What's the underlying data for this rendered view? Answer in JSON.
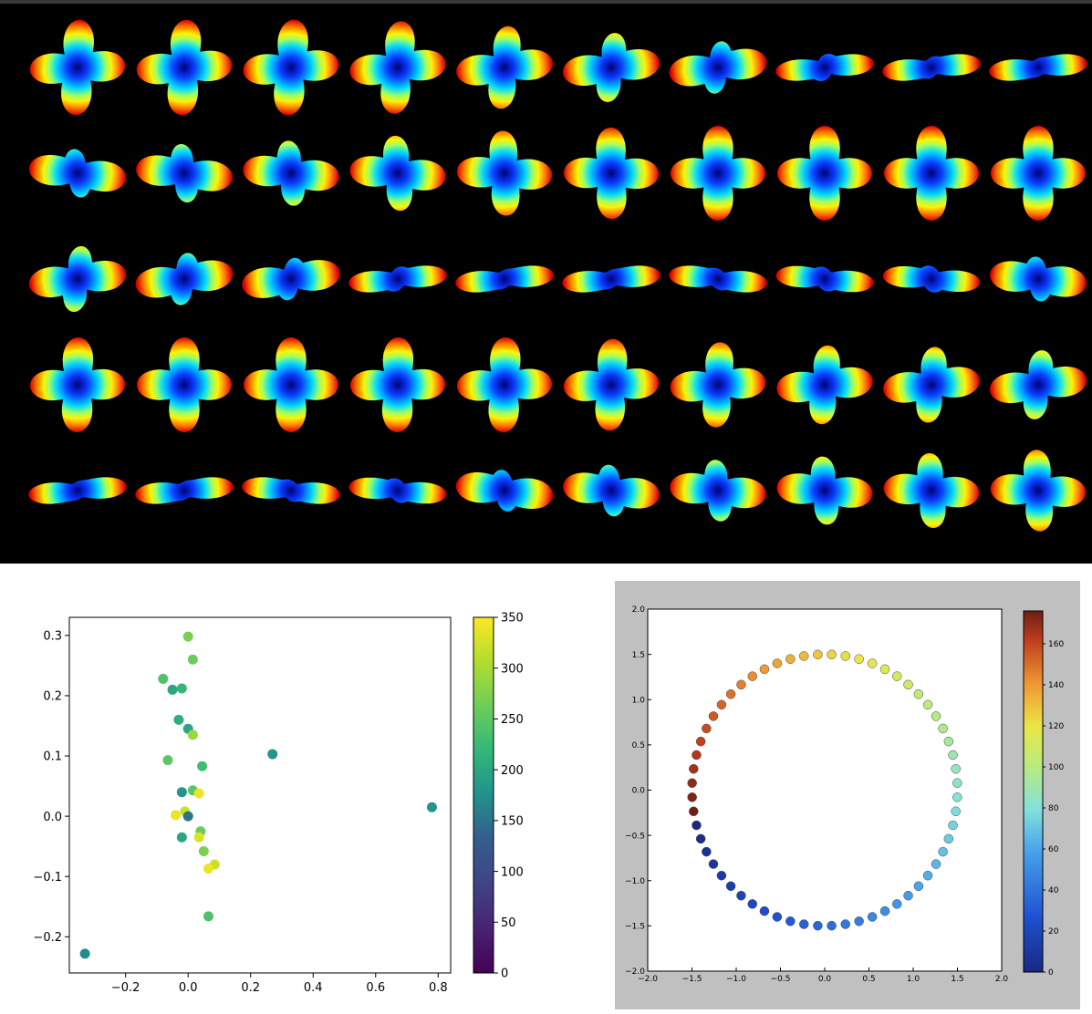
{
  "glyph_panel": {
    "rows": 5,
    "cols": 10,
    "background": "#000000",
    "colormap": "jet",
    "shape_type": "fourier-glyph",
    "cell_params": [
      [
        [
          1.0,
          0.15
        ],
        [
          1.0,
          0.2
        ],
        [
          1.0,
          0.25
        ],
        [
          0.95,
          0.3
        ],
        [
          0.8,
          0.35
        ],
        [
          0.6,
          0.4
        ],
        [
          0.35,
          0.45
        ],
        [
          0.15,
          0.5
        ],
        [
          0.05,
          0.5
        ],
        [
          0.0,
          0.5
        ]
      ],
      [
        [
          0.3,
          -0.4
        ],
        [
          0.45,
          -0.35
        ],
        [
          0.55,
          -0.3
        ],
        [
          0.7,
          -0.25
        ],
        [
          0.85,
          -0.15
        ],
        [
          0.95,
          -0.05
        ],
        [
          1.0,
          0.0
        ],
        [
          1.0,
          0.0
        ],
        [
          1.0,
          0.0
        ],
        [
          1.0,
          0.0
        ]
      ],
      [
        [
          0.55,
          0.4
        ],
        [
          0.35,
          0.45
        ],
        [
          0.2,
          0.5
        ],
        [
          0.1,
          0.5
        ],
        [
          0.0,
          0.5
        ],
        [
          0.0,
          0.5
        ],
        [
          0.05,
          -0.5
        ],
        [
          0.1,
          -0.45
        ],
        [
          0.15,
          -0.4
        ],
        [
          0.25,
          -0.35
        ]
      ],
      [
        [
          1.0,
          0.05
        ],
        [
          1.0,
          0.0
        ],
        [
          1.0,
          0.0
        ],
        [
          1.0,
          0.05
        ],
        [
          1.0,
          0.1
        ],
        [
          0.95,
          0.15
        ],
        [
          0.85,
          0.2
        ],
        [
          0.75,
          0.3
        ],
        [
          0.7,
          0.35
        ],
        [
          0.6,
          0.4
        ]
      ],
      [
        [
          0.0,
          0.5
        ],
        [
          0.0,
          0.5
        ],
        [
          0.05,
          -0.5
        ],
        [
          0.1,
          -0.45
        ],
        [
          0.2,
          -0.4
        ],
        [
          0.35,
          -0.35
        ],
        [
          0.5,
          -0.3
        ],
        [
          0.6,
          -0.25
        ],
        [
          0.7,
          -0.2
        ],
        [
          0.8,
          -0.15
        ]
      ]
    ]
  },
  "chart_data": [
    {
      "type": "scatter",
      "xlim": [
        -0.38,
        0.84
      ],
      "ylim": [
        -0.26,
        0.33
      ],
      "xticks": [
        -0.2,
        0.0,
        0.2,
        0.4,
        0.6,
        0.8
      ],
      "xtick_labels": [
        "−0.2",
        "0.0",
        "0.2",
        "0.4",
        "0.6",
        "0.8"
      ],
      "yticks": [
        -0.2,
        -0.1,
        0.0,
        0.1,
        0.2,
        0.3
      ],
      "ytick_labels": [
        "−0.2",
        "−0.1",
        "0.0",
        "0.1",
        "0.2",
        "0.3"
      ],
      "colormap": "viridis",
      "color_range": [
        0,
        350
      ],
      "colorbar_ticks": [
        0,
        50,
        100,
        150,
        200,
        250,
        300,
        350
      ],
      "colorbar_tick_labels": [
        "0",
        "50",
        "100",
        "150",
        "200",
        "250",
        "300",
        "350"
      ],
      "grid": false,
      "points": [
        {
          "x": 0.0,
          "y": 0.298,
          "c": 270
        },
        {
          "x": 0.015,
          "y": 0.26,
          "c": 260
        },
        {
          "x": -0.08,
          "y": 0.228,
          "c": 240
        },
        {
          "x": -0.05,
          "y": 0.21,
          "c": 200
        },
        {
          "x": -0.02,
          "y": 0.212,
          "c": 220
        },
        {
          "x": -0.03,
          "y": 0.16,
          "c": 210
        },
        {
          "x": 0.0,
          "y": 0.145,
          "c": 200
        },
        {
          "x": 0.015,
          "y": 0.135,
          "c": 290
        },
        {
          "x": -0.065,
          "y": 0.093,
          "c": 250
        },
        {
          "x": 0.045,
          "y": 0.083,
          "c": 230
        },
        {
          "x": 0.27,
          "y": 0.103,
          "c": 180
        },
        {
          "x": -0.02,
          "y": 0.04,
          "c": 180
        },
        {
          "x": 0.015,
          "y": 0.043,
          "c": 250
        },
        {
          "x": 0.035,
          "y": 0.038,
          "c": 340
        },
        {
          "x": -0.04,
          "y": 0.002,
          "c": 340
        },
        {
          "x": -0.01,
          "y": 0.008,
          "c": 320
        },
        {
          "x": 0.0,
          "y": 0.0,
          "c": 150
        },
        {
          "x": 0.78,
          "y": 0.015,
          "c": 180
        },
        {
          "x": 0.04,
          "y": -0.025,
          "c": 260
        },
        {
          "x": -0.02,
          "y": -0.035,
          "c": 200
        },
        {
          "x": 0.035,
          "y": -0.035,
          "c": 330
        },
        {
          "x": 0.05,
          "y": -0.058,
          "c": 270
        },
        {
          "x": 0.085,
          "y": -0.08,
          "c": 320
        },
        {
          "x": 0.065,
          "y": -0.087,
          "c": 340
        },
        {
          "x": 0.065,
          "y": -0.166,
          "c": 240
        },
        {
          "x": -0.33,
          "y": -0.228,
          "c": 170
        }
      ]
    },
    {
      "type": "scatter",
      "xlim": [
        -2.0,
        2.0
      ],
      "ylim": [
        -2.0,
        2.0
      ],
      "xticks": [
        -2.0,
        -1.5,
        -1.0,
        -0.5,
        0.0,
        0.5,
        1.0,
        1.5,
        2.0
      ],
      "xtick_labels": [
        "−2.0",
        "−1.5",
        "−1.0",
        "−0.5",
        "0.0",
        "0.5",
        "1.0",
        "1.5",
        "2.0"
      ],
      "yticks": [
        -2.0,
        -1.5,
        -1.0,
        -0.5,
        0.0,
        0.5,
        1.0,
        1.5,
        2.0
      ],
      "ytick_labels": [
        "−2.0",
        "−1.5",
        "−1.0",
        "−0.5",
        "0.0",
        "0.5",
        "1.0",
        "1.5",
        "2.0"
      ],
      "colormap": "jet",
      "color_range": [
        0,
        176
      ],
      "colorbar_ticks": [
        0,
        20,
        40,
        60,
        80,
        100,
        120,
        140,
        160
      ],
      "colorbar_tick_labels": [
        "0",
        "20",
        "40",
        "60",
        "80",
        "100",
        "120",
        "140",
        "160"
      ],
      "grid": false,
      "circle": {
        "radius": 1.5,
        "count": 60,
        "start_angle_deg": 195,
        "direction": "counterclockwise",
        "c_min": 0,
        "c_max": 176
      }
    }
  ]
}
